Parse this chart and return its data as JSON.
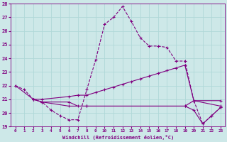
{
  "xlabel": "Windchill (Refroidissement éolien,°C)",
  "bg_color": "#cde8e8",
  "line_color": "#800080",
  "grid_color": "#b0d8d8",
  "xlim": [
    -0.5,
    23.5
  ],
  "ylim": [
    19,
    28
  ],
  "xticks": [
    0,
    1,
    2,
    3,
    4,
    5,
    6,
    7,
    8,
    9,
    10,
    11,
    12,
    13,
    14,
    15,
    16,
    17,
    18,
    19,
    20,
    21,
    22,
    23
  ],
  "yticks": [
    19,
    20,
    21,
    22,
    23,
    24,
    25,
    26,
    27,
    28
  ],
  "series1": [
    [
      0,
      22.0
    ],
    [
      1,
      21.7
    ],
    [
      2,
      21.0
    ],
    [
      3,
      20.8
    ],
    [
      4,
      20.2
    ],
    [
      5,
      19.8
    ],
    [
      6,
      19.5
    ],
    [
      7,
      19.5
    ],
    [
      8,
      21.7
    ],
    [
      9,
      23.9
    ],
    [
      10,
      26.5
    ],
    [
      11,
      27.0
    ],
    [
      12,
      27.8
    ],
    [
      13,
      26.7
    ],
    [
      14,
      25.5
    ],
    [
      15,
      24.9
    ],
    [
      16,
      24.9
    ],
    [
      17,
      24.8
    ],
    [
      18,
      23.8
    ],
    [
      19,
      23.8
    ],
    [
      20,
      20.9
    ],
    [
      21,
      19.2
    ],
    [
      22,
      19.8
    ],
    [
      23,
      20.4
    ]
  ],
  "series2": [
    [
      0,
      22.0
    ],
    [
      2,
      21.0
    ],
    [
      3,
      21.0
    ],
    [
      6,
      21.2
    ],
    [
      7,
      21.3
    ],
    [
      8,
      21.3
    ],
    [
      9,
      21.5
    ],
    [
      10,
      21.7
    ],
    [
      11,
      21.9
    ],
    [
      12,
      22.1
    ],
    [
      13,
      22.3
    ],
    [
      14,
      22.5
    ],
    [
      15,
      22.7
    ],
    [
      16,
      22.9
    ],
    [
      17,
      23.1
    ],
    [
      18,
      23.3
    ],
    [
      19,
      23.5
    ],
    [
      20,
      20.9
    ],
    [
      23,
      20.9
    ]
  ],
  "series3": [
    [
      2,
      21.0
    ],
    [
      3,
      20.8
    ],
    [
      6,
      20.8
    ],
    [
      7,
      20.5
    ],
    [
      8,
      20.5
    ],
    [
      19,
      20.5
    ],
    [
      20,
      20.9
    ],
    [
      23,
      20.5
    ]
  ],
  "series4": [
    [
      2,
      21.0
    ],
    [
      3,
      20.8
    ],
    [
      6,
      20.5
    ],
    [
      8,
      20.5
    ],
    [
      19,
      20.5
    ],
    [
      20,
      20.2
    ],
    [
      21,
      19.2
    ],
    [
      22,
      19.8
    ],
    [
      23,
      20.4
    ]
  ]
}
